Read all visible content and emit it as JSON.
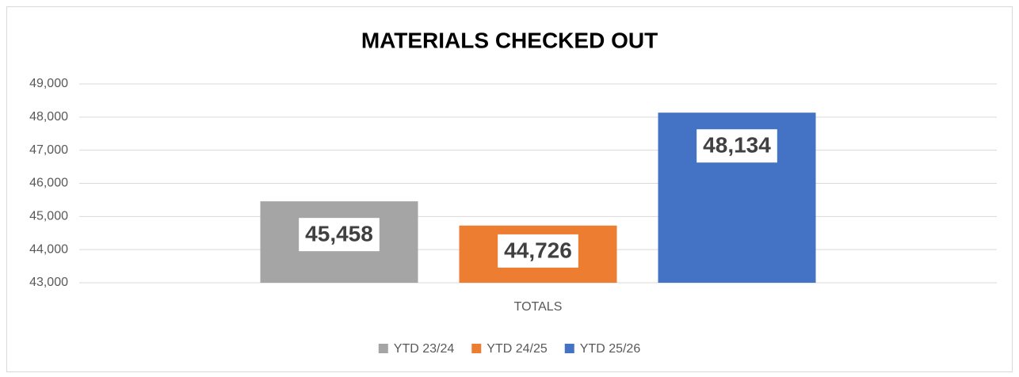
{
  "chart_data": {
    "type": "bar",
    "title": "MATERIALS CHECKED OUT",
    "categories": [
      "TOTALS"
    ],
    "series": [
      {
        "name": "YTD 23/24",
        "color": "#a5a5a5",
        "values": [
          45458
        ],
        "value_labels": [
          "45,458"
        ]
      },
      {
        "name": "YTD 24/25",
        "color": "#ed7d31",
        "values": [
          44726
        ],
        "value_labels": [
          "44,726"
        ]
      },
      {
        "name": "YTD 25/26",
        "color": "#4472c4",
        "values": [
          48134
        ],
        "value_labels": [
          "48,134"
        ]
      }
    ],
    "ylim": [
      43000,
      49000
    ],
    "yticks": [
      {
        "value": 43000,
        "label": "43,000"
      },
      {
        "value": 44000,
        "label": "44,000"
      },
      {
        "value": 45000,
        "label": "45,000"
      },
      {
        "value": 46000,
        "label": "46,000"
      },
      {
        "value": 47000,
        "label": "47,000"
      },
      {
        "value": 48000,
        "label": "48,000"
      },
      {
        "value": 49000,
        "label": "49,000"
      }
    ],
    "grid": true,
    "legend": "bottom"
  }
}
